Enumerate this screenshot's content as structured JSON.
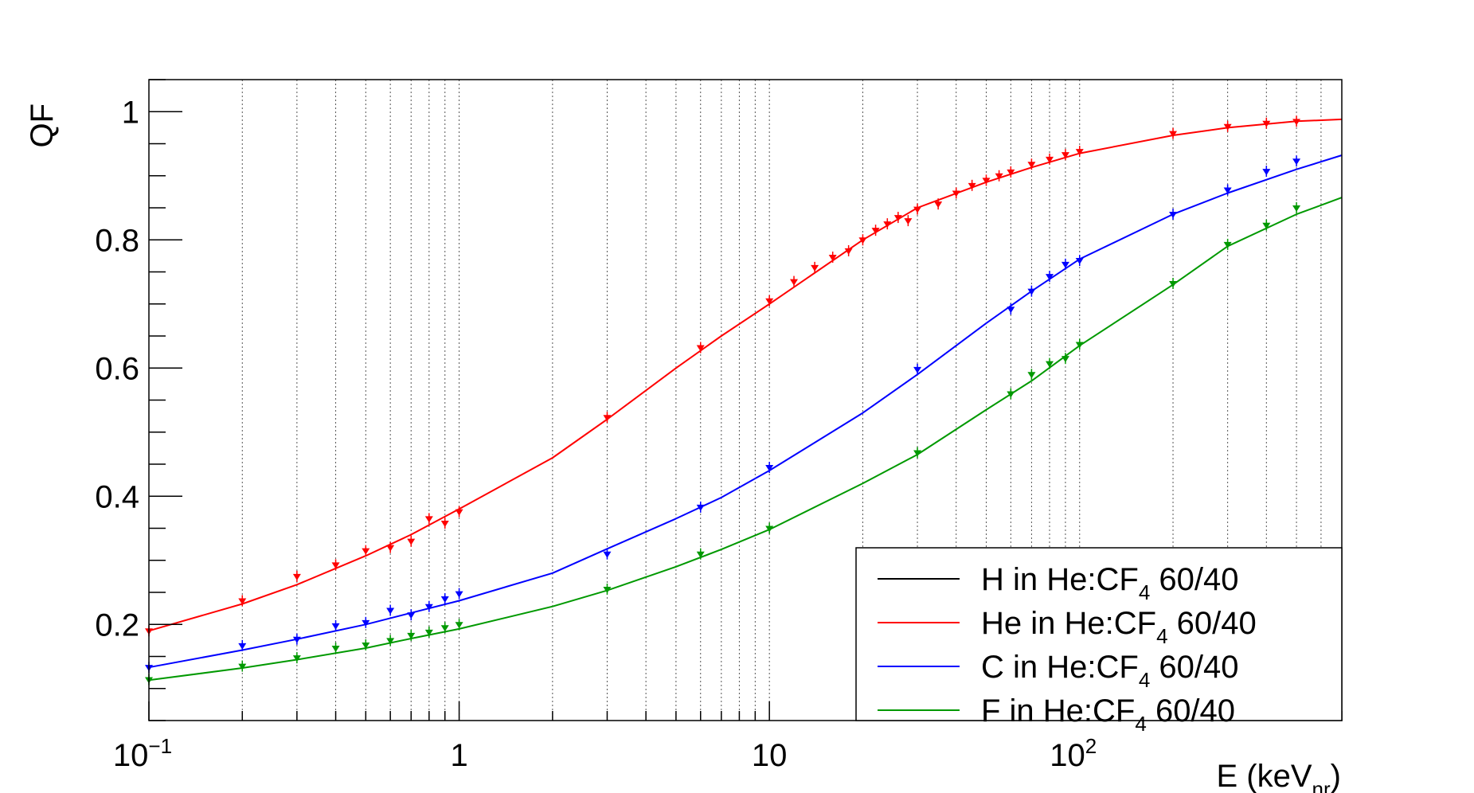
{
  "chart_data": {
    "type": "scatter",
    "title": "",
    "xlabel": {
      "main": "E (keV",
      "sub": "nr",
      "close": ")"
    },
    "ylabel": "QF",
    "x_scale": "log",
    "xlim": [
      0.1,
      700
    ],
    "ylim": [
      0.05,
      1.05
    ],
    "x_tick_labels": [
      {
        "value": 0.1,
        "base": "10",
        "exp": "−1"
      },
      {
        "value": 1,
        "base": "1",
        "exp": ""
      },
      {
        "value": 10,
        "base": "10",
        "exp": ""
      },
      {
        "value": 100,
        "base": "10",
        "exp": "2"
      }
    ],
    "y_tick_labels": [
      {
        "value": 0.2,
        "label": "0.2"
      },
      {
        "value": 0.4,
        "label": "0.4"
      },
      {
        "value": 0.6,
        "label": "0.6"
      },
      {
        "value": 0.8,
        "label": "0.8"
      },
      {
        "value": 1.0,
        "label": "1"
      }
    ],
    "grid": "vertical dotted lines at x data points",
    "grid_x": [
      0.2,
      0.3,
      0.4,
      0.5,
      0.6,
      0.7,
      0.8,
      0.9,
      1,
      2,
      3,
      4,
      5,
      6,
      7,
      8,
      9,
      10,
      20,
      30,
      40,
      50,
      60,
      70,
      80,
      90,
      100,
      200,
      300,
      400,
      500,
      600
    ],
    "legend_position": "bottom-right",
    "series": [
      {
        "name": "H in He:CF",
        "name_sub": "4",
        "name_suffix": " 60/40",
        "color": "#000000",
        "points": [],
        "curve": []
      },
      {
        "name": "He in He:CF",
        "name_sub": "4",
        "name_suffix": " 60/40",
        "color": "#ff0000",
        "points": [
          [
            0.1,
            0.19
          ],
          [
            0.2,
            0.237
          ],
          [
            0.3,
            0.275
          ],
          [
            0.4,
            0.293
          ],
          [
            0.5,
            0.315
          ],
          [
            0.6,
            0.32
          ],
          [
            0.7,
            0.33
          ],
          [
            0.8,
            0.365
          ],
          [
            0.9,
            0.358
          ],
          [
            1,
            0.376
          ],
          [
            3,
            0.523
          ],
          [
            6,
            0.632
          ],
          [
            10,
            0.705
          ],
          [
            12,
            0.735
          ],
          [
            14,
            0.757
          ],
          [
            16,
            0.773
          ],
          [
            18,
            0.783
          ],
          [
            20,
            0.8
          ],
          [
            22,
            0.815
          ],
          [
            24,
            0.825
          ],
          [
            26,
            0.835
          ],
          [
            28,
            0.83
          ],
          [
            30,
            0.848
          ],
          [
            35,
            0.856
          ],
          [
            40,
            0.873
          ],
          [
            45,
            0.885
          ],
          [
            50,
            0.893
          ],
          [
            55,
            0.9
          ],
          [
            60,
            0.906
          ],
          [
            70,
            0.918
          ],
          [
            80,
            0.926
          ],
          [
            90,
            0.933
          ],
          [
            100,
            0.938
          ],
          [
            200,
            0.966
          ],
          [
            300,
            0.977
          ],
          [
            400,
            0.982
          ],
          [
            500,
            0.985
          ]
        ],
        "curve": [
          [
            0.1,
            0.19
          ],
          [
            0.2,
            0.232
          ],
          [
            0.3,
            0.262
          ],
          [
            0.5,
            0.307
          ],
          [
            0.7,
            0.34
          ],
          [
            1,
            0.38
          ],
          [
            2,
            0.46
          ],
          [
            3,
            0.52
          ],
          [
            5,
            0.6
          ],
          [
            7,
            0.65
          ],
          [
            10,
            0.7
          ],
          [
            20,
            0.8
          ],
          [
            30,
            0.85
          ],
          [
            50,
            0.89
          ],
          [
            70,
            0.913
          ],
          [
            100,
            0.935
          ],
          [
            200,
            0.963
          ],
          [
            300,
            0.975
          ],
          [
            500,
            0.985
          ],
          [
            700,
            0.988
          ]
        ]
      },
      {
        "name": "C in He:CF",
        "name_sub": "4",
        "name_suffix": " 60/40",
        "color": "#0000ff",
        "points": [
          [
            0.1,
            0.133
          ],
          [
            0.2,
            0.167
          ],
          [
            0.3,
            0.177
          ],
          [
            0.4,
            0.198
          ],
          [
            0.5,
            0.203
          ],
          [
            0.6,
            0.222
          ],
          [
            0.7,
            0.215
          ],
          [
            0.8,
            0.228
          ],
          [
            0.9,
            0.24
          ],
          [
            1,
            0.248
          ],
          [
            3,
            0.31
          ],
          [
            6,
            0.383
          ],
          [
            10,
            0.445
          ],
          [
            30,
            0.598
          ],
          [
            60,
            0.692
          ],
          [
            70,
            0.72
          ],
          [
            80,
            0.743
          ],
          [
            90,
            0.762
          ],
          [
            100,
            0.768
          ],
          [
            200,
            0.84
          ],
          [
            300,
            0.878
          ],
          [
            400,
            0.907
          ],
          [
            500,
            0.923
          ]
        ],
        "curve": [
          [
            0.1,
            0.133
          ],
          [
            0.2,
            0.16
          ],
          [
            0.3,
            0.177
          ],
          [
            0.5,
            0.2
          ],
          [
            0.7,
            0.218
          ],
          [
            1,
            0.237
          ],
          [
            2,
            0.28
          ],
          [
            3,
            0.318
          ],
          [
            5,
            0.365
          ],
          [
            7,
            0.398
          ],
          [
            10,
            0.44
          ],
          [
            20,
            0.53
          ],
          [
            30,
            0.59
          ],
          [
            50,
            0.67
          ],
          [
            70,
            0.72
          ],
          [
            100,
            0.77
          ],
          [
            200,
            0.84
          ],
          [
            300,
            0.873
          ],
          [
            500,
            0.91
          ],
          [
            700,
            0.932
          ]
        ]
      },
      {
        "name": "F in He:CF",
        "name_sub": "4",
        "name_suffix": " 60/40",
        "color": "#009900",
        "points": [
          [
            0.1,
            0.114
          ],
          [
            0.2,
            0.135
          ],
          [
            0.3,
            0.148
          ],
          [
            0.4,
            0.163
          ],
          [
            0.5,
            0.168
          ],
          [
            0.6,
            0.175
          ],
          [
            0.7,
            0.183
          ],
          [
            0.8,
            0.188
          ],
          [
            0.9,
            0.195
          ],
          [
            1,
            0.2
          ],
          [
            3,
            0.255
          ],
          [
            6,
            0.31
          ],
          [
            10,
            0.35
          ],
          [
            30,
            0.468
          ],
          [
            60,
            0.56
          ],
          [
            70,
            0.59
          ],
          [
            80,
            0.607
          ],
          [
            90,
            0.615
          ],
          [
            100,
            0.637
          ],
          [
            200,
            0.732
          ],
          [
            300,
            0.793
          ],
          [
            400,
            0.823
          ],
          [
            500,
            0.85
          ]
        ],
        "curve": [
          [
            0.1,
            0.113
          ],
          [
            0.2,
            0.132
          ],
          [
            0.3,
            0.145
          ],
          [
            0.5,
            0.163
          ],
          [
            0.7,
            0.178
          ],
          [
            1,
            0.193
          ],
          [
            2,
            0.228
          ],
          [
            3,
            0.253
          ],
          [
            5,
            0.29
          ],
          [
            7,
            0.317
          ],
          [
            10,
            0.348
          ],
          [
            20,
            0.42
          ],
          [
            30,
            0.465
          ],
          [
            50,
            0.535
          ],
          [
            70,
            0.58
          ],
          [
            100,
            0.635
          ],
          [
            200,
            0.73
          ],
          [
            300,
            0.79
          ],
          [
            500,
            0.84
          ],
          [
            700,
            0.866
          ]
        ]
      }
    ]
  }
}
